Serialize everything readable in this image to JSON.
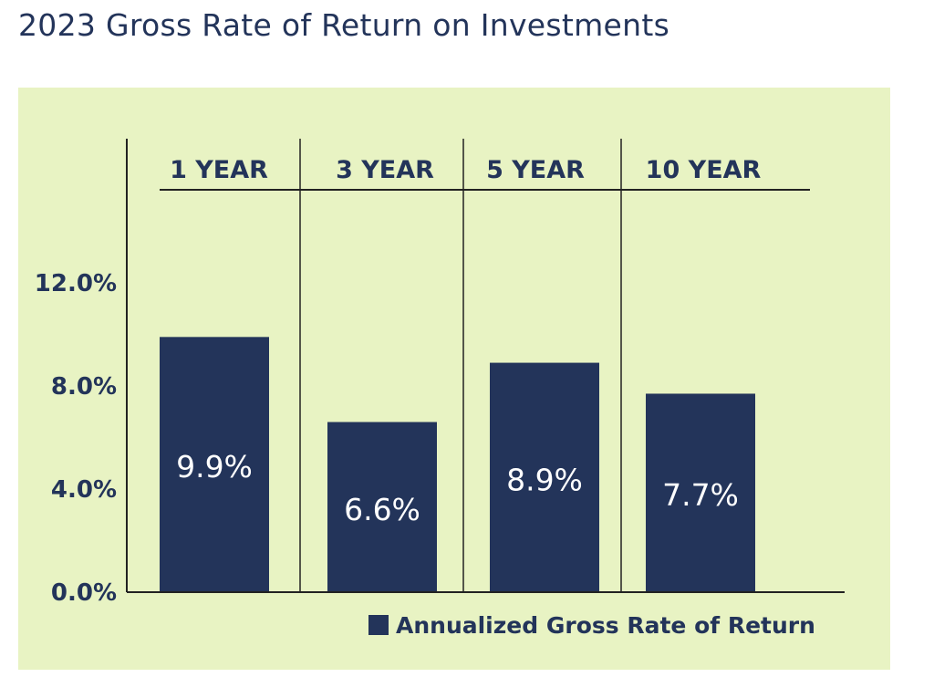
{
  "chart_data": {
    "type": "bar",
    "title": "2023 Gross Rate of Return on Investments",
    "categories": [
      "1 YEAR",
      "3 YEAR",
      "5 YEAR",
      "10 YEAR"
    ],
    "series": [
      {
        "name": "Annualized Gross Rate of Return",
        "values": [
          9.9,
          6.6,
          8.9,
          7.7
        ],
        "data_labels": [
          "9.9%",
          "6.6%",
          "8.9%",
          "7.7%"
        ]
      }
    ],
    "yticks": [
      "0.0%",
      "4.0%",
      "8.0%",
      "12.0%"
    ],
    "ytick_values": [
      0,
      4,
      8,
      12
    ],
    "xlabel": "",
    "ylabel": "",
    "ylim": [
      0,
      12
    ],
    "grid": false,
    "legend": "bottom-right",
    "colors": {
      "bar": "#23345a",
      "panel": "#e8f3c3",
      "text": "#23345a",
      "axis": "#222222"
    }
  }
}
